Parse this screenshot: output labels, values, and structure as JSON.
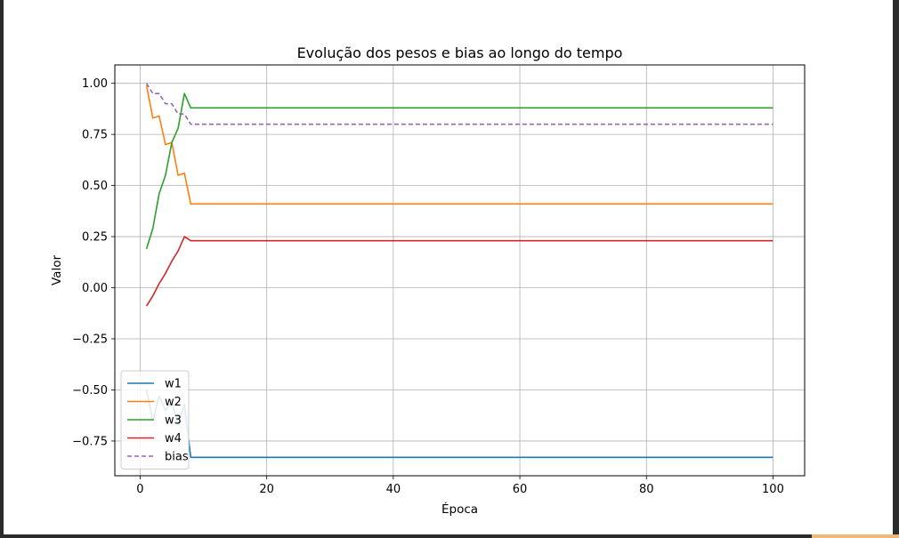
{
  "window": {
    "accent_color": "#f0b877"
  },
  "chart_data": {
    "type": "line",
    "title": "Evolução dos pesos e bias ao longo do tempo",
    "xlabel": "Época",
    "ylabel": "Valor",
    "xlim": [
      -4,
      105
    ],
    "ylim": [
      -0.92,
      1.09
    ],
    "xticks": [
      0,
      20,
      40,
      60,
      80,
      100
    ],
    "xtick_labels": [
      "0",
      "20",
      "40",
      "60",
      "80",
      "100"
    ],
    "yticks": [
      -0.75,
      -0.5,
      -0.25,
      0.0,
      0.25,
      0.5,
      0.75,
      1.0
    ],
    "ytick_labels": [
      "−0.75",
      "−0.50",
      "−0.25",
      "0.00",
      "0.25",
      "0.50",
      "0.75",
      "1.00"
    ],
    "grid": true,
    "legend_position": "lower-left",
    "series": [
      {
        "name": "w1",
        "color": "#1f77b4",
        "dash": "solid",
        "x": [
          1,
          2,
          3,
          4,
          5,
          6,
          7,
          8,
          100
        ],
        "y": [
          -0.5,
          -0.65,
          -0.53,
          -0.6,
          -0.56,
          -0.67,
          -0.57,
          -0.83,
          -0.83
        ]
      },
      {
        "name": "w2",
        "color": "#ff7f0e",
        "dash": "solid",
        "x": [
          1,
          2,
          3,
          4,
          5,
          6,
          7,
          8,
          100
        ],
        "y": [
          0.99,
          0.83,
          0.84,
          0.7,
          0.71,
          0.55,
          0.56,
          0.41,
          0.41
        ]
      },
      {
        "name": "w3",
        "color": "#2ca02c",
        "dash": "solid",
        "x": [
          1,
          2,
          3,
          4,
          5,
          6,
          7,
          8,
          100
        ],
        "y": [
          0.19,
          0.29,
          0.46,
          0.55,
          0.71,
          0.78,
          0.95,
          0.88,
          0.88
        ]
      },
      {
        "name": "w4",
        "color": "#d62728",
        "dash": "solid",
        "x": [
          1,
          2,
          3,
          4,
          5,
          6,
          7,
          8,
          100
        ],
        "y": [
          -0.09,
          -0.04,
          0.02,
          0.07,
          0.13,
          0.18,
          0.25,
          0.23,
          0.23
        ]
      },
      {
        "name": "bias",
        "color": "#9467bd",
        "dash": "dashed",
        "x": [
          1,
          2,
          3,
          4,
          5,
          6,
          7,
          8,
          100
        ],
        "y": [
          1.0,
          0.95,
          0.95,
          0.9,
          0.9,
          0.85,
          0.85,
          0.8,
          0.8
        ]
      }
    ]
  }
}
